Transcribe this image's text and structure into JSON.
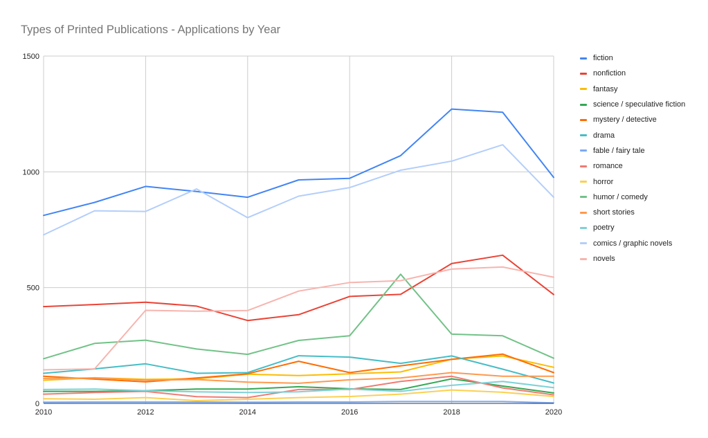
{
  "chart_data": {
    "type": "line",
    "title": "Types of Printed Publications - Applications by Year",
    "xlabel": "",
    "ylabel": "",
    "x": [
      2010,
      2011,
      2012,
      2013,
      2014,
      2015,
      2016,
      2017,
      2018,
      2019,
      2020
    ],
    "x_ticks": [
      "2010",
      "2012",
      "2014",
      "2016",
      "2018",
      "2020"
    ],
    "ylim": [
      0,
      1500
    ],
    "y_ticks": [
      "0",
      "500",
      "1000",
      "1500"
    ],
    "grid": true,
    "legend_position": "right",
    "series": [
      {
        "name": "fiction",
        "color": "#4285F4",
        "values": [
          812,
          868,
          937,
          915,
          890,
          965,
          972,
          1070,
          1271,
          1257,
          976
        ]
      },
      {
        "name": "nonfiction",
        "color": "#EA4335",
        "values": [
          418,
          427,
          437,
          420,
          358,
          383,
          462,
          471,
          604,
          640,
          470
        ]
      },
      {
        "name": "fantasy",
        "color": "#FBBC04",
        "values": [
          100,
          111,
          104,
          106,
          126,
          120,
          128,
          136,
          191,
          205,
          156
        ]
      },
      {
        "name": "science / speculative fiction",
        "color": "#34A853",
        "values": [
          52,
          52,
          55,
          62,
          62,
          72,
          63,
          60,
          106,
          75,
          45
        ]
      },
      {
        "name": "mystery / detective",
        "color": "#FF6D01",
        "values": [
          117,
          105,
          93,
          110,
          128,
          182,
          133,
          162,
          190,
          213,
          133
        ]
      },
      {
        "name": "drama",
        "color": "#46BDC6",
        "values": [
          130,
          149,
          171,
          130,
          133,
          206,
          200,
          173,
          205,
          148,
          88
        ]
      },
      {
        "name": "fable / fairy tale",
        "color": "#7BAAF7",
        "values": [
          5,
          6,
          6,
          6,
          5,
          6,
          6,
          8,
          8,
          8,
          2
        ]
      },
      {
        "name": "romance",
        "color": "#F07B72",
        "values": [
          40,
          47,
          52,
          29,
          25,
          60,
          60,
          95,
          117,
          67,
          37
        ]
      },
      {
        "name": "horror",
        "color": "#FCD04F",
        "values": [
          20,
          18,
          25,
          12,
          18,
          25,
          30,
          40,
          58,
          48,
          30
        ]
      },
      {
        "name": "humor / comedy",
        "color": "#71C287",
        "values": [
          193,
          259,
          273,
          235,
          212,
          272,
          292,
          558,
          299,
          292,
          195
        ]
      },
      {
        "name": "short stories",
        "color": "#FF994D",
        "values": [
          108,
          110,
          100,
          103,
          92,
          87,
          102,
          110,
          133,
          117,
          117
        ]
      },
      {
        "name": "poetry",
        "color": "#7ED1D7",
        "values": [
          60,
          62,
          55,
          50,
          47,
          50,
          62,
          52,
          78,
          95,
          68
        ]
      },
      {
        "name": "comics / graphic novels",
        "color": "#B3CEFB",
        "values": [
          728,
          832,
          829,
          926,
          802,
          895,
          932,
          1007,
          1046,
          1117,
          890
        ]
      },
      {
        "name": "novels",
        "color": "#F7B4AE",
        "values": [
          145,
          149,
          402,
          398,
          401,
          485,
          522,
          530,
          580,
          589,
          545
        ]
      }
    ]
  }
}
